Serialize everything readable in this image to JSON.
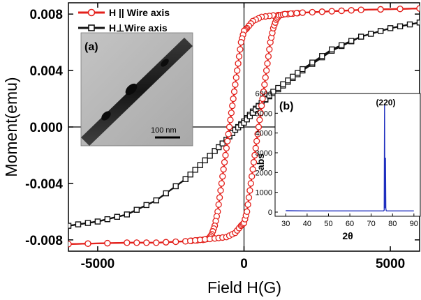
{
  "colors": {
    "parallel": "#e3201b",
    "perpendicular": "#111111",
    "xrd": "#1f2fbf",
    "axis": "#000000"
  },
  "chart_data": [
    {
      "type": "line",
      "xlabel": "Field H(G)",
      "ylabel": "Moment(emu)",
      "xlim": [
        -6000,
        6000
      ],
      "ylim": [
        -0.0088,
        0.0088
      ],
      "xticks": [
        -5000,
        0,
        5000
      ],
      "xtick_labels": [
        "-5000",
        "0",
        "5000"
      ],
      "yticks": [
        -0.008,
        -0.004,
        0.0,
        0.004,
        0.008
      ],
      "ytick_labels": [
        "-0.008",
        "-0.004",
        "0.000",
        "0.004",
        "0.008"
      ],
      "grid": false,
      "legend_position": "top-left",
      "series": [
        {
          "name": "H || Wire axis",
          "marker": "circle",
          "color_key": "parallel",
          "branches": [
            {
              "x": [
                6000,
                4000,
                3000,
                2000,
                1500,
                1000,
                600,
                300,
                100,
                0,
                -100,
                -200,
                -300,
                -400,
                -500,
                -600,
                -700,
                -800,
                -900,
                -1000,
                -1100,
                -1200,
                -1400,
                -2000,
                -3000,
                -4000,
                -6000
              ],
              "y": [
                0.0084,
                0.0083,
                0.0082,
                0.0081,
                0.008,
                0.0079,
                0.0078,
                0.0075,
                0.007,
                0.0068,
                0.006,
                0.0045,
                0.003,
                0.0015,
                0.0,
                -0.0015,
                -0.003,
                -0.0045,
                -0.006,
                -0.007,
                -0.0076,
                -0.0079,
                -0.008,
                -0.0081,
                -0.0082,
                -0.0082,
                -0.0083
              ]
            },
            {
              "x": [
                -6000,
                -4000,
                -3000,
                -2000,
                -1500,
                -1000,
                -600,
                -300,
                -100,
                0,
                100,
                200,
                300,
                400,
                500,
                600,
                700,
                800,
                900,
                1000,
                1100,
                1200,
                1400,
                2000,
                3000,
                4000,
                6000
              ],
              "y": [
                -0.0083,
                -0.0082,
                -0.0082,
                -0.0081,
                -0.008,
                -0.0079,
                -0.0078,
                -0.0075,
                -0.007,
                -0.0068,
                -0.006,
                -0.0045,
                -0.003,
                -0.0015,
                0.0,
                0.0015,
                0.003,
                0.0045,
                0.006,
                0.007,
                0.0076,
                0.0079,
                0.008,
                0.0081,
                0.0082,
                0.0083,
                0.0084
              ]
            }
          ]
        },
        {
          "name": "H⊥Wire axis",
          "marker": "square",
          "color_key": "perpendicular",
          "branches": [
            {
              "x": [
                6000,
                5000,
                4000,
                3000,
                2000,
                1500,
                1000,
                600,
                300,
                0,
                -300,
                -600,
                -1000,
                -1500,
                -2000,
                -3000,
                -4000,
                -5000,
                -6000
              ],
              "y": [
                0.0074,
                0.007,
                0.0064,
                0.0054,
                0.004,
                0.0032,
                0.0024,
                0.0017,
                0.0011,
                0.0004,
                -0.0002,
                -0.0009,
                -0.0017,
                -0.0027,
                -0.0037,
                -0.0052,
                -0.0062,
                -0.0067,
                -0.007
              ]
            },
            {
              "x": [
                -6000,
                -5000,
                -4000,
                -3000,
                -2000,
                -1500,
                -1000,
                -600,
                -300,
                0,
                300,
                600,
                1000,
                1500,
                2000,
                3000,
                4000,
                5000,
                6000
              ],
              "y": [
                -0.007,
                -0.0067,
                -0.0062,
                -0.0052,
                -0.0037,
                -0.0027,
                -0.0017,
                -0.0009,
                -0.0002,
                0.0003,
                0.001,
                0.0017,
                0.0025,
                0.0033,
                0.0041,
                0.0055,
                0.0064,
                0.007,
                0.0074
              ]
            }
          ]
        }
      ]
    },
    {
      "type": "line",
      "panel_label": "(b)",
      "xlabel": "2θ",
      "ylabel": "abs",
      "xlim": [
        25,
        93
      ],
      "ylim": [
        0,
        6000
      ],
      "xticks": [
        30,
        40,
        50,
        60,
        70,
        80,
        90
      ],
      "yticks": [
        0,
        1000,
        2000,
        3000,
        4000,
        5000,
        6000
      ],
      "peak_label": "(220)",
      "peak_label_x": 76.8,
      "series": [
        {
          "color_key": "xrd",
          "x": [
            30,
            40,
            50,
            60,
            70,
            74,
            75.8,
            76.1,
            76.25,
            76.4,
            76.55,
            76.7,
            76.85,
            77.0,
            77.2,
            77.5,
            80,
            90
          ],
          "y": [
            70,
            60,
            60,
            60,
            60,
            60,
            60,
            100,
            5450,
            800,
            200,
            2750,
            200,
            80,
            60,
            60,
            60,
            60
          ]
        }
      ]
    }
  ],
  "inset_a": {
    "panel_label": "(a)",
    "scale_bar_label": "100 nm"
  }
}
